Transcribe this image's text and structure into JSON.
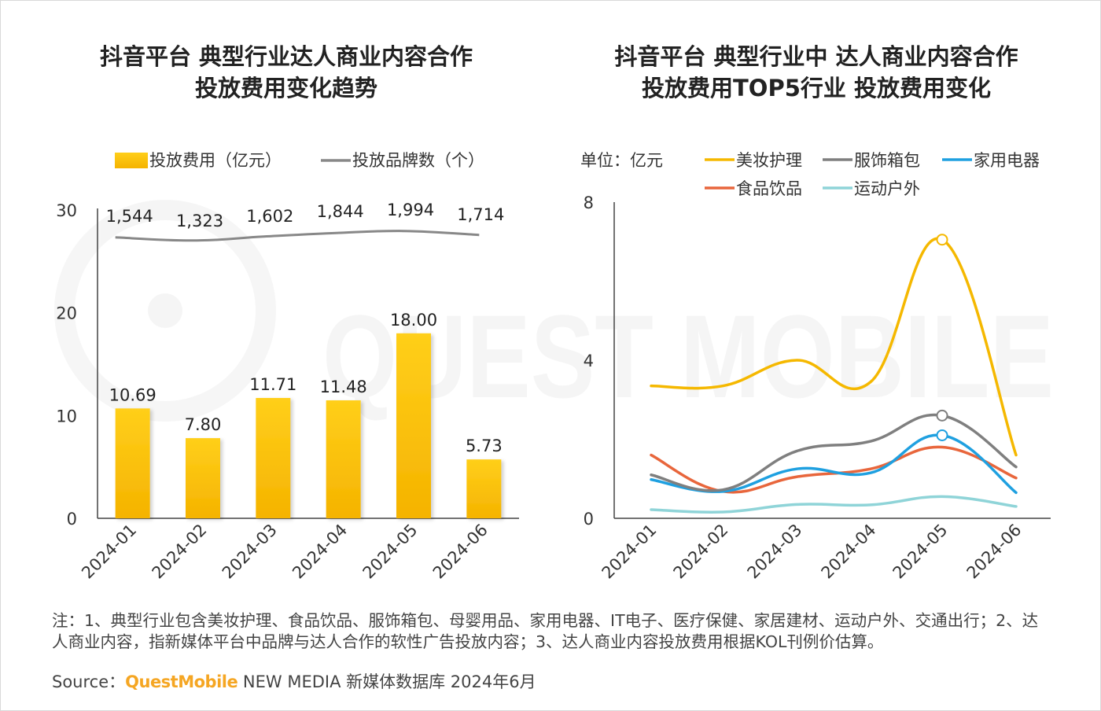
{
  "chart_data": [
    {
      "type": "bar",
      "title": "抖音平台 典型行业达人商业内容合作",
      "subtitle": "投放费用变化趋势",
      "categories": [
        "2024-01",
        "2024-02",
        "2024-03",
        "2024-04",
        "2024-05",
        "2024-06"
      ],
      "series": [
        {
          "name": "投放费用（亿元）",
          "type": "bar",
          "values": [
            10.69,
            7.8,
            11.71,
            11.48,
            18.0,
            5.73
          ],
          "labels": [
            "10.69",
            "7.80",
            "11.71",
            "11.48",
            "18.00",
            "5.73"
          ]
        },
        {
          "name": "投放品牌数（个）",
          "type": "line",
          "values": [
            1544,
            1323,
            1602,
            1844,
            1994,
            1714
          ],
          "labels": [
            "1,544",
            "1,323",
            "1,602",
            "1,844",
            "1,994",
            "1,714"
          ]
        }
      ],
      "ylim": [
        0,
        30
      ],
      "yticks": [
        "0",
        "10",
        "20",
        "30"
      ],
      "legend": "top",
      "colors": {
        "bar_top": "#ffcf1a",
        "bar_bottom": "#f5b300",
        "line": "#888888"
      }
    },
    {
      "type": "line",
      "title": "抖音平台 典型行业中 达人商业内容合作",
      "subtitle": "投放费用TOP5行业 投放费用变化",
      "unit": "单位：亿元",
      "categories": [
        "2024-01",
        "2024-02",
        "2024-03",
        "2024-04",
        "2024-05",
        "2024-06"
      ],
      "series": [
        {
          "name": "美妆护理",
          "color": "#f5b800",
          "values": [
            3.35,
            3.35,
            4.0,
            3.45,
            7.05,
            1.6
          ]
        },
        {
          "name": "服饰箱包",
          "color": "#7f7f7f",
          "values": [
            1.1,
            0.72,
            1.7,
            1.95,
            2.6,
            1.3
          ]
        },
        {
          "name": "家用电器",
          "color": "#1fa0e0",
          "values": [
            0.98,
            0.68,
            1.25,
            1.15,
            2.1,
            0.65
          ]
        },
        {
          "name": "食品饮品",
          "color": "#e8663c",
          "values": [
            1.6,
            0.68,
            1.05,
            1.25,
            1.8,
            1.02
          ]
        },
        {
          "name": "运动户外",
          "color": "#8fd4d8",
          "values": [
            0.22,
            0.16,
            0.35,
            0.34,
            0.55,
            0.3
          ]
        }
      ],
      "ylim": [
        0,
        8
      ],
      "yticks": [
        "0",
        "4",
        "8"
      ],
      "legend": "top"
    }
  ],
  "footnote": "注：1、典型行业包含美妆护理、食品饮品、服饰箱包、母婴用品、家用电器、IT电子、医疗保健、家居建材、运动户外、交通出行；2、达人商业内容，指新媒体平台中品牌与达人合作的软性广告投放内容；3、达人商业内容投放费用根据KOL刊例价估算。",
  "source": {
    "label": "Source：",
    "brand": "QuestMobile",
    "rest": " NEW MEDIA 新媒体数据库 2024年6月"
  }
}
